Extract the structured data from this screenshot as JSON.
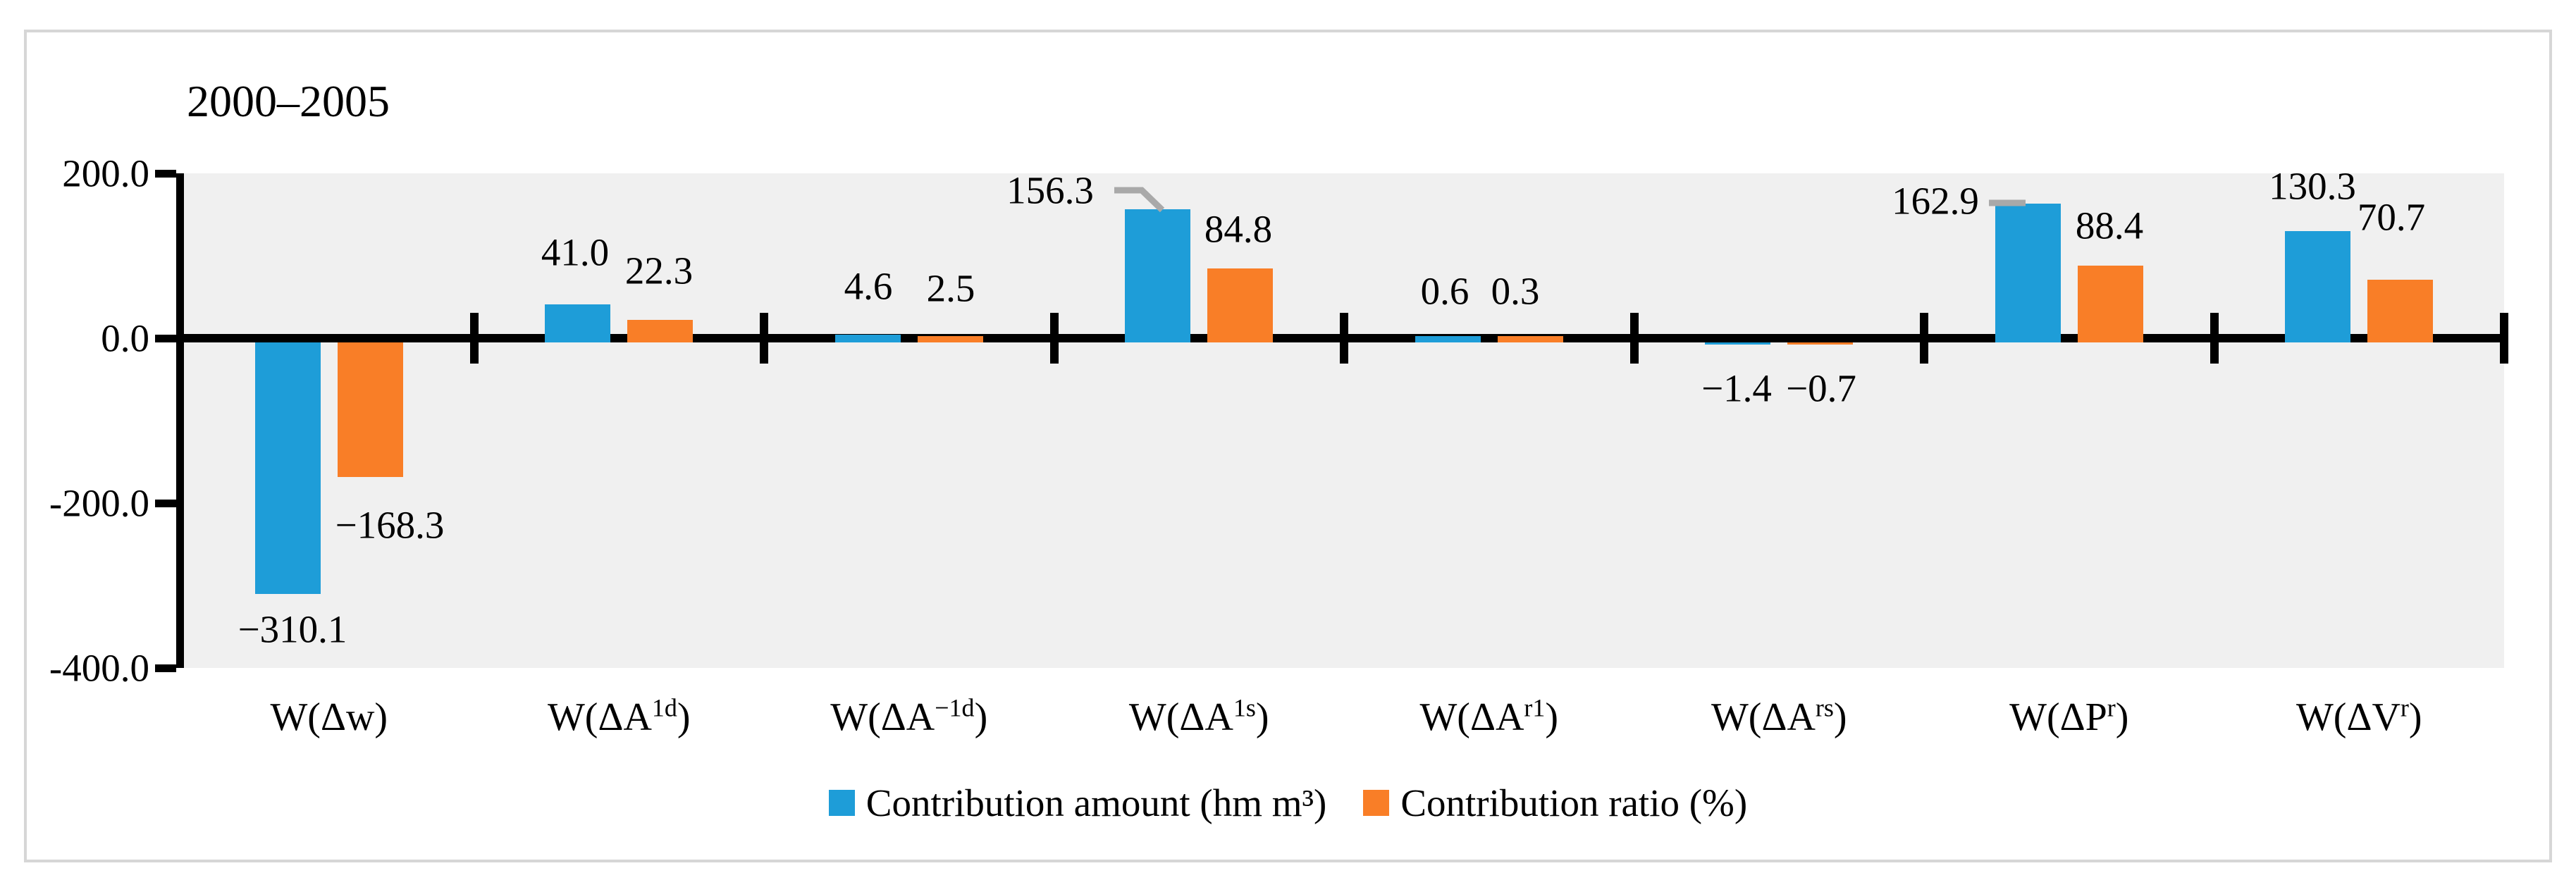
{
  "figure": {
    "title": "2000–2005",
    "plot_bg_color": "#f0f0f0",
    "frame_border_color": "#d6d6d6",
    "leader_line_color": "#a9a9a9",
    "axis_color": "#000000"
  },
  "chart_data": {
    "type": "bar",
    "title": "2000–2005",
    "categories": [
      {
        "pre": "W(Δw)",
        "sup": "",
        "post": ""
      },
      {
        "pre": "W(ΔA",
        "sup": "1d",
        "post": ")"
      },
      {
        "pre": "W(ΔA",
        "sup": "−1d",
        "post": ")"
      },
      {
        "pre": "W(ΔA",
        "sup": "1s",
        "post": ")"
      },
      {
        "pre": "W(ΔA",
        "sup": "r1",
        "post": ")"
      },
      {
        "pre": "W(ΔA",
        "sup": "rs",
        "post": ")"
      },
      {
        "pre": "W(ΔP",
        "sup": "r",
        "post": ")"
      },
      {
        "pre": "W(ΔV",
        "sup": "r",
        "post": ")"
      }
    ],
    "series": [
      {
        "name": "Contribution amount (hm m³)",
        "color": "#1e9dd8",
        "values": [
          -310.1,
          41.0,
          4.6,
          156.3,
          0.6,
          -1.4,
          162.9,
          130.3
        ],
        "data_labels": [
          "−310.1",
          "41.0",
          "4.6",
          "156.3",
          "0.6",
          "−1.4",
          "162.9",
          "130.3"
        ]
      },
      {
        "name": "Contribution ratio (%)",
        "color": "#f97e27",
        "values": [
          -168.3,
          22.3,
          2.5,
          84.8,
          0.3,
          -0.7,
          88.4,
          70.7
        ],
        "data_labels": [
          "−168.3",
          "22.3",
          "2.5",
          "84.8",
          "0.3",
          "−0.7",
          "88.4",
          "70.7"
        ]
      }
    ],
    "y_axis": {
      "min": -400,
      "max": 200,
      "tick_labels": [
        "200.0",
        "0.0",
        "-200.0",
        "-400.0"
      ],
      "tick_values": [
        200,
        0,
        -200,
        -400
      ]
    },
    "x_axis_line_value": 0,
    "grid": false,
    "legend_position": "bottom"
  }
}
